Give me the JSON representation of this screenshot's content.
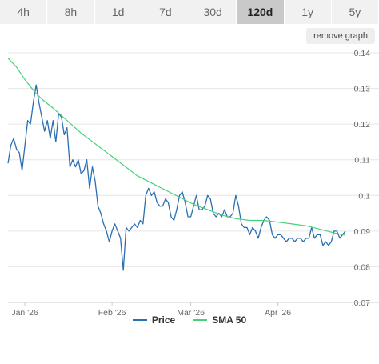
{
  "timeframes": [
    {
      "label": "4h",
      "active": false
    },
    {
      "label": "8h",
      "active": false
    },
    {
      "label": "1d",
      "active": false
    },
    {
      "label": "7d",
      "active": false
    },
    {
      "label": "30d",
      "active": false
    },
    {
      "label": "120d",
      "active": true
    },
    {
      "label": "1y",
      "active": false
    },
    {
      "label": "5y",
      "active": false
    }
  ],
  "remove_graph_label": "remove graph",
  "colors": {
    "price": "#2a6fb2",
    "sma": "#48d07a",
    "grid": "#e6e6e6",
    "axis": "#666666"
  },
  "chart_data": {
    "type": "line",
    "x_ticks": [
      "Jan '26",
      "Feb '26",
      "Mar '26",
      "Apr '26"
    ],
    "y_ticks": [
      "0.14",
      "0.13",
      "0.12",
      "0.11",
      "0.1",
      "0.09",
      "0.08",
      "0.07"
    ],
    "ylim": [
      0.07,
      0.14
    ],
    "x_range_days": [
      -6,
      114
    ],
    "x_tick_days": [
      0,
      31,
      59,
      90
    ],
    "grid": true,
    "legend_position": "bottom",
    "series": [
      {
        "name": "Price",
        "points": [
          [
            -6,
            0.109
          ],
          [
            -5,
            0.114
          ],
          [
            -4,
            0.116
          ],
          [
            -3,
            0.113
          ],
          [
            -2,
            0.112
          ],
          [
            -1,
            0.107
          ],
          [
            0,
            0.114
          ],
          [
            1,
            0.121
          ],
          [
            2,
            0.12
          ],
          [
            3,
            0.126
          ],
          [
            4,
            0.131
          ],
          [
            5,
            0.126
          ],
          [
            6,
            0.122
          ],
          [
            7,
            0.118
          ],
          [
            8,
            0.121
          ],
          [
            9,
            0.116
          ],
          [
            10,
            0.121
          ],
          [
            11,
            0.115
          ],
          [
            12,
            0.123
          ],
          [
            13,
            0.122
          ],
          [
            14,
            0.117
          ],
          [
            15,
            0.119
          ],
          [
            16,
            0.108
          ],
          [
            17,
            0.11
          ],
          [
            18,
            0.108
          ],
          [
            19,
            0.11
          ],
          [
            20,
            0.106
          ],
          [
            21,
            0.107
          ],
          [
            22,
            0.11
          ],
          [
            23,
            0.102
          ],
          [
            24,
            0.108
          ],
          [
            25,
            0.104
          ],
          [
            26,
            0.097
          ],
          [
            27,
            0.095
          ],
          [
            28,
            0.092
          ],
          [
            29,
            0.09
          ],
          [
            30,
            0.087
          ],
          [
            31,
            0.09
          ],
          [
            32,
            0.092
          ],
          [
            33,
            0.09
          ],
          [
            34,
            0.088
          ],
          [
            35,
            0.079
          ],
          [
            36,
            0.091
          ],
          [
            37,
            0.09
          ],
          [
            38,
            0.091
          ],
          [
            39,
            0.092
          ],
          [
            40,
            0.091
          ],
          [
            41,
            0.093
          ],
          [
            42,
            0.092
          ],
          [
            43,
            0.1
          ],
          [
            44,
            0.102
          ],
          [
            45,
            0.1
          ],
          [
            46,
            0.101
          ],
          [
            47,
            0.098
          ],
          [
            48,
            0.097
          ],
          [
            49,
            0.097
          ],
          [
            50,
            0.099
          ],
          [
            51,
            0.098
          ],
          [
            52,
            0.094
          ],
          [
            53,
            0.093
          ],
          [
            54,
            0.096
          ],
          [
            55,
            0.1
          ],
          [
            56,
            0.101
          ],
          [
            57,
            0.098
          ],
          [
            58,
            0.094
          ],
          [
            59,
            0.094
          ],
          [
            60,
            0.097
          ],
          [
            61,
            0.1
          ],
          [
            62,
            0.096
          ],
          [
            63,
            0.096
          ],
          [
            64,
            0.097
          ],
          [
            65,
            0.1
          ],
          [
            66,
            0.099
          ],
          [
            67,
            0.095
          ],
          [
            68,
            0.094
          ],
          [
            69,
            0.095
          ],
          [
            70,
            0.094
          ],
          [
            71,
            0.096
          ],
          [
            72,
            0.094
          ],
          [
            73,
            0.094
          ],
          [
            74,
            0.095
          ],
          [
            75,
            0.1
          ],
          [
            76,
            0.097
          ],
          [
            77,
            0.092
          ],
          [
            78,
            0.091
          ],
          [
            79,
            0.091
          ],
          [
            80,
            0.089
          ],
          [
            81,
            0.091
          ],
          [
            82,
            0.09
          ],
          [
            83,
            0.088
          ],
          [
            84,
            0.091
          ],
          [
            85,
            0.093
          ],
          [
            86,
            0.094
          ],
          [
            87,
            0.093
          ],
          [
            88,
            0.089
          ],
          [
            89,
            0.088
          ],
          [
            90,
            0.089
          ],
          [
            91,
            0.089
          ],
          [
            92,
            0.088
          ],
          [
            93,
            0.087
          ],
          [
            94,
            0.088
          ],
          [
            95,
            0.088
          ],
          [
            96,
            0.087
          ],
          [
            97,
            0.088
          ],
          [
            98,
            0.088
          ],
          [
            99,
            0.087
          ],
          [
            100,
            0.088
          ],
          [
            101,
            0.088
          ],
          [
            102,
            0.091
          ],
          [
            103,
            0.088
          ],
          [
            104,
            0.089
          ],
          [
            105,
            0.089
          ],
          [
            106,
            0.086
          ],
          [
            107,
            0.087
          ],
          [
            108,
            0.086
          ],
          [
            109,
            0.087
          ],
          [
            110,
            0.09
          ],
          [
            111,
            0.09
          ],
          [
            112,
            0.088
          ],
          [
            113,
            0.089
          ],
          [
            114,
            0.09
          ]
        ]
      },
      {
        "name": "SMA 50",
        "points": [
          [
            -6,
            0.1385
          ],
          [
            -3,
            0.136
          ],
          [
            0,
            0.1325
          ],
          [
            3,
            0.1295
          ],
          [
            6,
            0.127
          ],
          [
            10,
            0.1245
          ],
          [
            15,
            0.121
          ],
          [
            20,
            0.1175
          ],
          [
            25,
            0.1145
          ],
          [
            30,
            0.1115
          ],
          [
            35,
            0.1085
          ],
          [
            40,
            0.1055
          ],
          [
            45,
            0.1035
          ],
          [
            50,
            0.1015
          ],
          [
            55,
            0.0995
          ],
          [
            60,
            0.0975
          ],
          [
            65,
            0.096
          ],
          [
            70,
            0.0945
          ],
          [
            75,
            0.0935
          ],
          [
            80,
            0.093
          ],
          [
            85,
            0.093
          ],
          [
            90,
            0.0925
          ],
          [
            95,
            0.092
          ],
          [
            100,
            0.0915
          ],
          [
            105,
            0.0905
          ],
          [
            110,
            0.0895
          ],
          [
            114,
            0.0888
          ]
        ]
      }
    ]
  }
}
